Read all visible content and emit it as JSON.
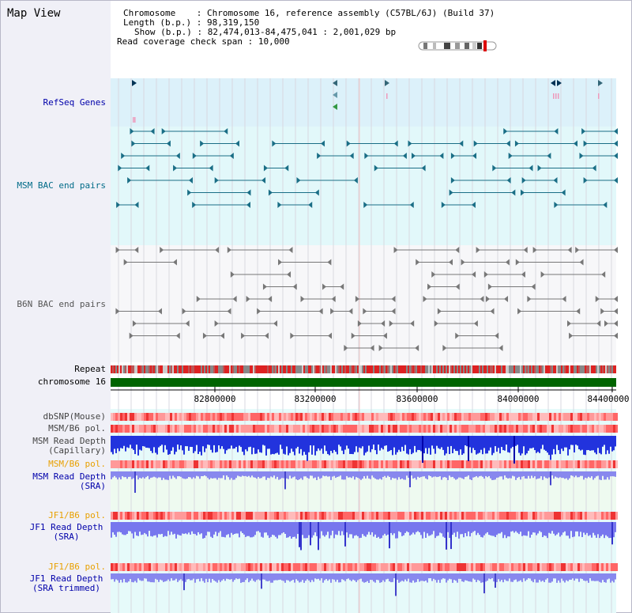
{
  "title": "Map View",
  "info": {
    "chromosome_label": "Chromosome",
    "chromosome_value": "Chromosome 16, reference assembly (C57BL/6J) (Build 37)",
    "length_label": "Length (b.p.)",
    "length_value": "98,319,150",
    "show_label": "Show (b.p.)",
    "show_value": "82,474,013-84,475,041 : 2,001,029 bp",
    "coverage_label": "Read coverage check span",
    "coverage_value": "10,000"
  },
  "tracks": {
    "refseq": "RefSeq Genes",
    "msm_bac": "MSM BAC end pairs",
    "b6n_bac": "B6N BAC end pairs",
    "repeat": "Repeat",
    "chromosome": "chromosome 16",
    "dbsnp": "dbSNP(Mouse)",
    "msm_b6_pol_1": "MSM/B6 pol.",
    "msm_depth_cap_1": "MSM Read Depth",
    "msm_depth_cap_2": "(Capillary)",
    "msm_b6_pol_2": "MSM/B6 pol.",
    "msm_depth_sra_1": "MSM Read Depth",
    "msm_depth_sra_2": "(SRA)",
    "jf1_b6_pol_1": "JF1/B6 pol.",
    "jf1_depth_sra_1": "JF1 Read Depth",
    "jf1_depth_sra_2": "(SRA)",
    "jf1_b6_pol_2": "JF1/B6 pol.",
    "jf1_depth_trim_1": "JF1 Read Depth",
    "jf1_depth_trim_2": "(SRA trimmed)"
  },
  "axis_ticks": [
    "82800000",
    "83200000",
    "83600000",
    "84000000",
    "84400000"
  ],
  "colors": {
    "label_blue": "#0000aa",
    "label_teal": "#006b88",
    "label_gray": "#555555",
    "label_orange": "#e8a000",
    "refseq_bg": "#dcf1fa",
    "msm_bg": "#e2f8fa",
    "b6n_bg": "#f7f7f9",
    "chrom_green": "#006400"
  }
}
